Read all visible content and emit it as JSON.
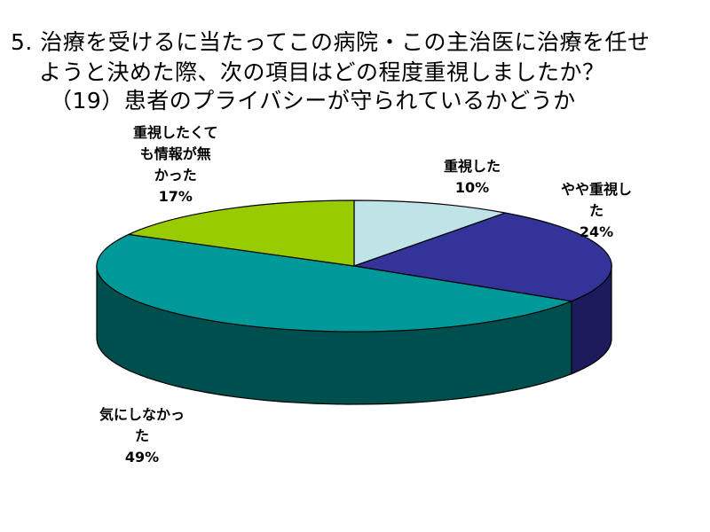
{
  "title_lines": [
    "5. 治療を受けるに当たってこの病院・この主治医に治療を任せ",
    "ようと決めた際、次の項目はどの程度重視しましたか？",
    "（19）患者のプライバシーが守られているかどうか"
  ],
  "chart_data": {
    "type": "pie",
    "style": "3d",
    "title": "5. 治療を受けるに当たってこの病院・この主治医に治療を任せようと決めた際、次の項目はどの程度重視しましたか？（19）患者のプライバシーが守られているかどうか",
    "categories": [
      "重視した",
      "やや重視した",
      "気にしなかった",
      "重視したくても情報が無かった"
    ],
    "values": [
      10,
      24,
      49,
      17
    ],
    "units": "%",
    "colors": [
      "#bfe3e6",
      "#333399",
      "#009999",
      "#99cc00"
    ],
    "side_colors": [
      "#8fb4b6",
      "#1c1c5c",
      "#004f4f",
      "#5c7a00"
    ],
    "labels": [
      {
        "lines": [
          "重視した"
        ],
        "pct": "10%"
      },
      {
        "lines": [
          "やや重視し",
          "た"
        ],
        "pct": "24%"
      },
      {
        "lines": [
          "気にしなかっ",
          "た"
        ],
        "pct": "49%"
      },
      {
        "lines": [
          "重視したくて",
          "も情報が無",
          "かった"
        ],
        "pct": "17%"
      }
    ],
    "legend": "none"
  }
}
